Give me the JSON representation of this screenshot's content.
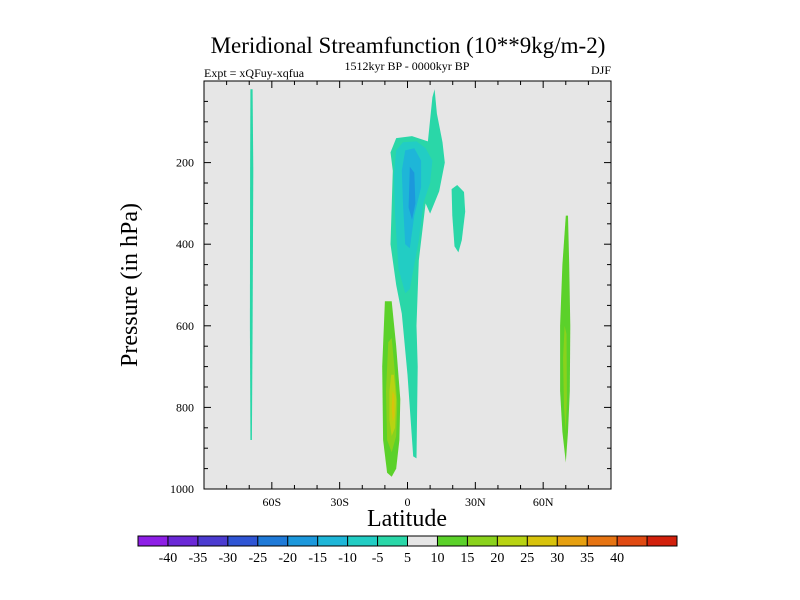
{
  "chart_data": {
    "type": "contour",
    "title": "Meridional Streamfunction (10**9kg/m-2)",
    "left_label": "Expt = xQFuy-xqfua",
    "center_label": "1512kyr BP - 0000kyr BP",
    "right_label": "DJF",
    "xlabel": "Latitude",
    "ylabel": "Pressure (in hPa)",
    "xlim": [
      -90,
      90
    ],
    "ylim": [
      0,
      1000
    ],
    "y_inverted": true,
    "x_ticks": [
      {
        "value": -60,
        "label": "60S"
      },
      {
        "value": -30,
        "label": "30S"
      },
      {
        "value": 0,
        "label": "0"
      },
      {
        "value": 30,
        "label": "30N"
      },
      {
        "value": 60,
        "label": "60N"
      }
    ],
    "y_ticks": [
      {
        "value": 200,
        "label": "200"
      },
      {
        "value": 400,
        "label": "400"
      },
      {
        "value": 600,
        "label": "600"
      },
      {
        "value": 800,
        "label": "800"
      },
      {
        "value": 1000,
        "label": "1000"
      }
    ],
    "colorbar": {
      "levels": [
        "-40",
        "-35",
        "-30",
        "-25",
        "-20",
        "-15",
        "-10",
        "-5",
        "5",
        "10",
        "15",
        "20",
        "25",
        "30",
        "35",
        "40"
      ],
      "colors": [
        "#8e1fe6",
        "#6a28d6",
        "#4b3bd0",
        "#2f55d4",
        "#1f7ad8",
        "#1c98dc",
        "#1eb6d8",
        "#22cdc4",
        "#2ad7a8",
        "#e6e6e6",
        "#5bd12a",
        "#8ad21c",
        "#b8d312",
        "#d8c30c",
        "#e6a010",
        "#e67412",
        "#e04a12",
        "#d2200c"
      ]
    },
    "features": [
      {
        "name": "southern-narrow-negative",
        "value": -5,
        "color_index": 8,
        "polygon": [
          [
            -69.5,
            20
          ],
          [
            -68.5,
            20
          ],
          [
            -68.2,
            220
          ],
          [
            -68.5,
            600
          ],
          [
            -68.8,
            880
          ],
          [
            -69.5,
            880
          ],
          [
            -69.7,
            600
          ],
          [
            -69.6,
            220
          ]
        ]
      },
      {
        "name": "upper-negative-cell",
        "value": -5,
        "color_index": 8,
        "polygon": [
          [
            -7.5,
            175
          ],
          [
            -5,
            140
          ],
          [
            2,
            135
          ],
          [
            9,
            148
          ],
          [
            11,
            40
          ],
          [
            12,
            20
          ],
          [
            13,
            80
          ],
          [
            15.5,
            150
          ],
          [
            16.5,
            200
          ],
          [
            14,
            270
          ],
          [
            10,
            325
          ],
          [
            8,
            300
          ],
          [
            5,
            440
          ],
          [
            4,
            600
          ],
          [
            4.5,
            700
          ],
          [
            4,
            925
          ],
          [
            2.5,
            920
          ],
          [
            0,
            720
          ],
          [
            -2.5,
            570
          ],
          [
            -5,
            500
          ],
          [
            -7.5,
            400
          ],
          [
            -6.5,
            220
          ]
        ]
      },
      {
        "name": "upper-negative-inner",
        "value": -10,
        "color_index": 7,
        "polygon": [
          [
            -5,
            170
          ],
          [
            -2,
            150
          ],
          [
            4,
            148
          ],
          [
            8,
            165
          ],
          [
            11,
            195
          ],
          [
            10,
            250
          ],
          [
            7,
            300
          ],
          [
            5,
            390
          ],
          [
            1,
            510
          ],
          [
            -1,
            520
          ],
          [
            -4,
            460
          ],
          [
            -5.5,
            330
          ],
          [
            -6,
            230
          ]
        ]
      },
      {
        "name": "upper-negative-core",
        "value": -15,
        "color_index": 6,
        "polygon": [
          [
            -1,
            170
          ],
          [
            3,
            165
          ],
          [
            6,
            195
          ],
          [
            6,
            260
          ],
          [
            3,
            330
          ],
          [
            1,
            410
          ],
          [
            -1,
            400
          ],
          [
            -2,
            300
          ],
          [
            -2.5,
            220
          ]
        ]
      },
      {
        "name": "upper-negative-max",
        "value": -20,
        "color_index": 5,
        "polygon": [
          [
            1,
            210
          ],
          [
            3,
            225
          ],
          [
            3.5,
            300
          ],
          [
            2,
            340
          ],
          [
            0.5,
            310
          ]
        ]
      },
      {
        "name": "subtropical-negative",
        "value": -5,
        "color_index": 8,
        "polygon": [
          [
            19.5,
            265
          ],
          [
            22,
            255
          ],
          [
            25,
            272
          ],
          [
            25.5,
            320
          ],
          [
            24,
            390
          ],
          [
            22.5,
            420
          ],
          [
            20.8,
            405
          ],
          [
            19.8,
            330
          ]
        ]
      },
      {
        "name": "lower-positive-cell",
        "value": 5,
        "color_index": 10,
        "polygon": [
          [
            -10,
            540
          ],
          [
            -7,
            540
          ],
          [
            -5,
            650
          ],
          [
            -3.2,
            780
          ],
          [
            -3.6,
            880
          ],
          [
            -5,
            950
          ],
          [
            -7,
            970
          ],
          [
            -9,
            960
          ],
          [
            -10.8,
            880
          ],
          [
            -11.2,
            700
          ]
        ]
      },
      {
        "name": "lower-positive-inner",
        "value": 10,
        "color_index": 11,
        "polygon": [
          [
            -8.5,
            640
          ],
          [
            -7,
            630
          ],
          [
            -5.5,
            720
          ],
          [
            -4.5,
            790
          ],
          [
            -5,
            870
          ],
          [
            -7,
            910
          ],
          [
            -9,
            880
          ],
          [
            -9.5,
            760
          ]
        ]
      },
      {
        "name": "lower-positive-core",
        "value": 15,
        "color_index": 12,
        "polygon": [
          [
            -7.2,
            720
          ],
          [
            -6,
            720
          ],
          [
            -5,
            780
          ],
          [
            -5.5,
            850
          ],
          [
            -7,
            870
          ],
          [
            -8,
            830
          ],
          [
            -8,
            760
          ]
        ]
      },
      {
        "name": "lower-positive-max",
        "value": 20,
        "color_index": 13,
        "polygon": [
          [
            -6.6,
            760
          ],
          [
            -5.8,
            770
          ],
          [
            -5.7,
            820
          ],
          [
            -6.5,
            835
          ],
          [
            -7,
            800
          ]
        ]
      },
      {
        "name": "northern-positive",
        "value": 5,
        "color_index": 10,
        "polygon": [
          [
            70,
            330
          ],
          [
            71,
            330
          ],
          [
            71.5,
            450
          ],
          [
            72,
            600
          ],
          [
            71.8,
            760
          ],
          [
            71,
            860
          ],
          [
            70,
            935
          ],
          [
            68.5,
            860
          ],
          [
            67.5,
            760
          ],
          [
            67.5,
            600
          ],
          [
            68.5,
            450
          ]
        ]
      },
      {
        "name": "northern-positive-inner",
        "value": 10,
        "color_index": 11,
        "polygon": [
          [
            69.5,
            600
          ],
          [
            70.3,
            620
          ],
          [
            70.5,
            780
          ],
          [
            70,
            860
          ],
          [
            69.2,
            800
          ],
          [
            68.8,
            680
          ]
        ]
      }
    ]
  }
}
